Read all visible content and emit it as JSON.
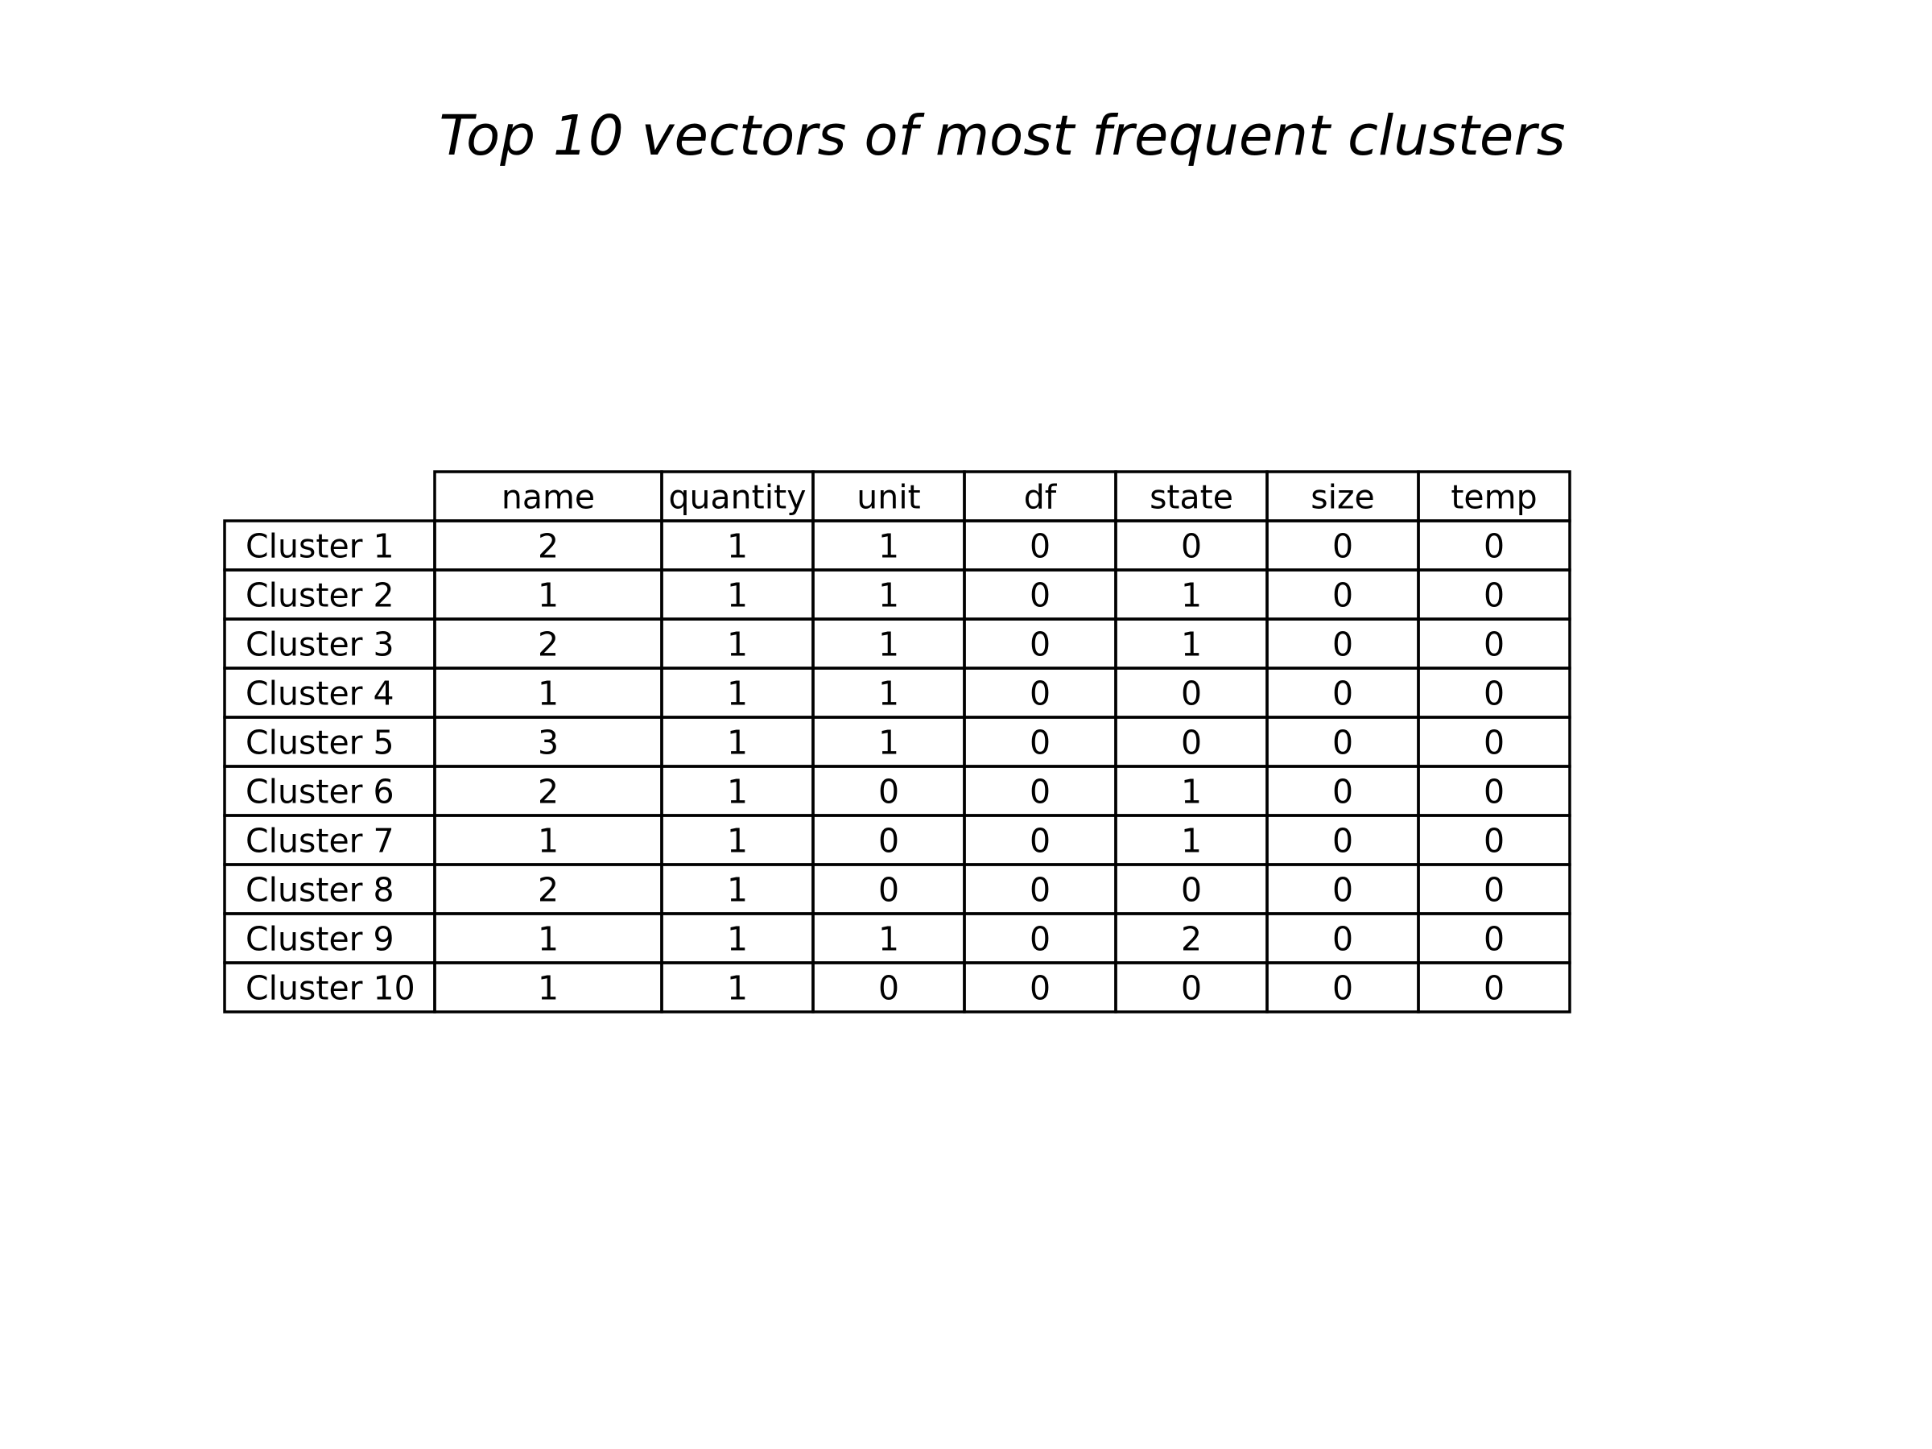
{
  "chart_data": {
    "type": "table",
    "title": "Top 10 vectors of most frequent clusters",
    "columns": [
      "name",
      "quantity",
      "unit",
      "df",
      "state",
      "size",
      "temp"
    ],
    "row_labels": [
      "Cluster 1",
      "Cluster 2",
      "Cluster 3",
      "Cluster 4",
      "Cluster 5",
      "Cluster 6",
      "Cluster 7",
      "Cluster 8",
      "Cluster 9",
      "Cluster 10"
    ],
    "rows": [
      [
        2,
        1,
        1,
        0,
        0,
        0,
        0
      ],
      [
        1,
        1,
        1,
        0,
        1,
        0,
        0
      ],
      [
        2,
        1,
        1,
        0,
        1,
        0,
        0
      ],
      [
        1,
        1,
        1,
        0,
        0,
        0,
        0
      ],
      [
        3,
        1,
        1,
        0,
        0,
        0,
        0
      ],
      [
        2,
        1,
        0,
        0,
        1,
        0,
        0
      ],
      [
        1,
        1,
        0,
        0,
        1,
        0,
        0
      ],
      [
        2,
        1,
        0,
        0,
        0,
        0,
        0
      ],
      [
        1,
        1,
        1,
        0,
        2,
        0,
        0
      ],
      [
        1,
        1,
        0,
        0,
        0,
        0,
        0
      ]
    ],
    "grid": true,
    "line_color": "#000000",
    "text_color": "#000000"
  }
}
